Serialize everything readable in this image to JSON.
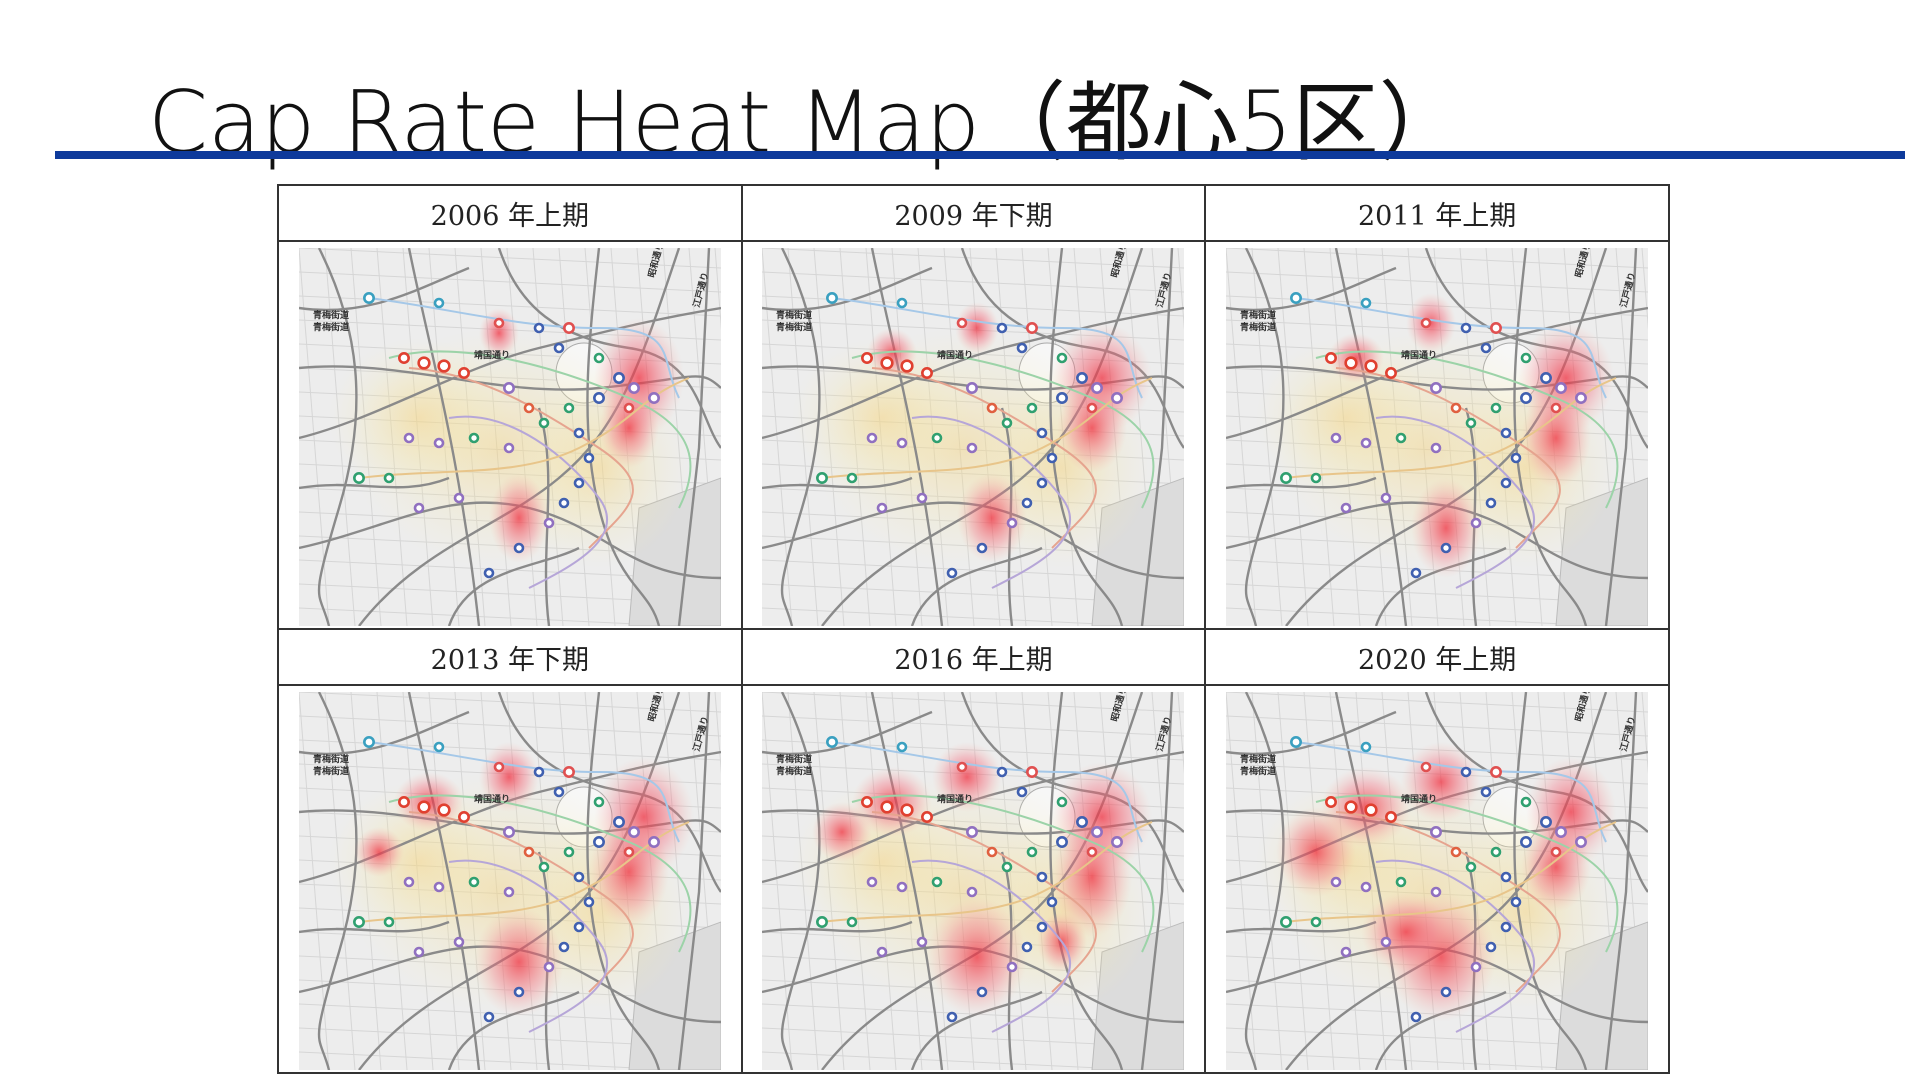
{
  "title": "Cap Rate Heat Map（都心5区）",
  "panels": [
    {
      "label": "2006 年上期"
    },
    {
      "label": "2009 年下期"
    },
    {
      "label": "2011 年上期"
    },
    {
      "label": "2013 年下期"
    },
    {
      "label": "2016 年上期"
    },
    {
      "label": "2020 年上期"
    }
  ],
  "map_labels": [
    "青梅街道",
    "青梅街道",
    "靖国通り",
    "昭和通り",
    "江戸通り"
  ]
}
